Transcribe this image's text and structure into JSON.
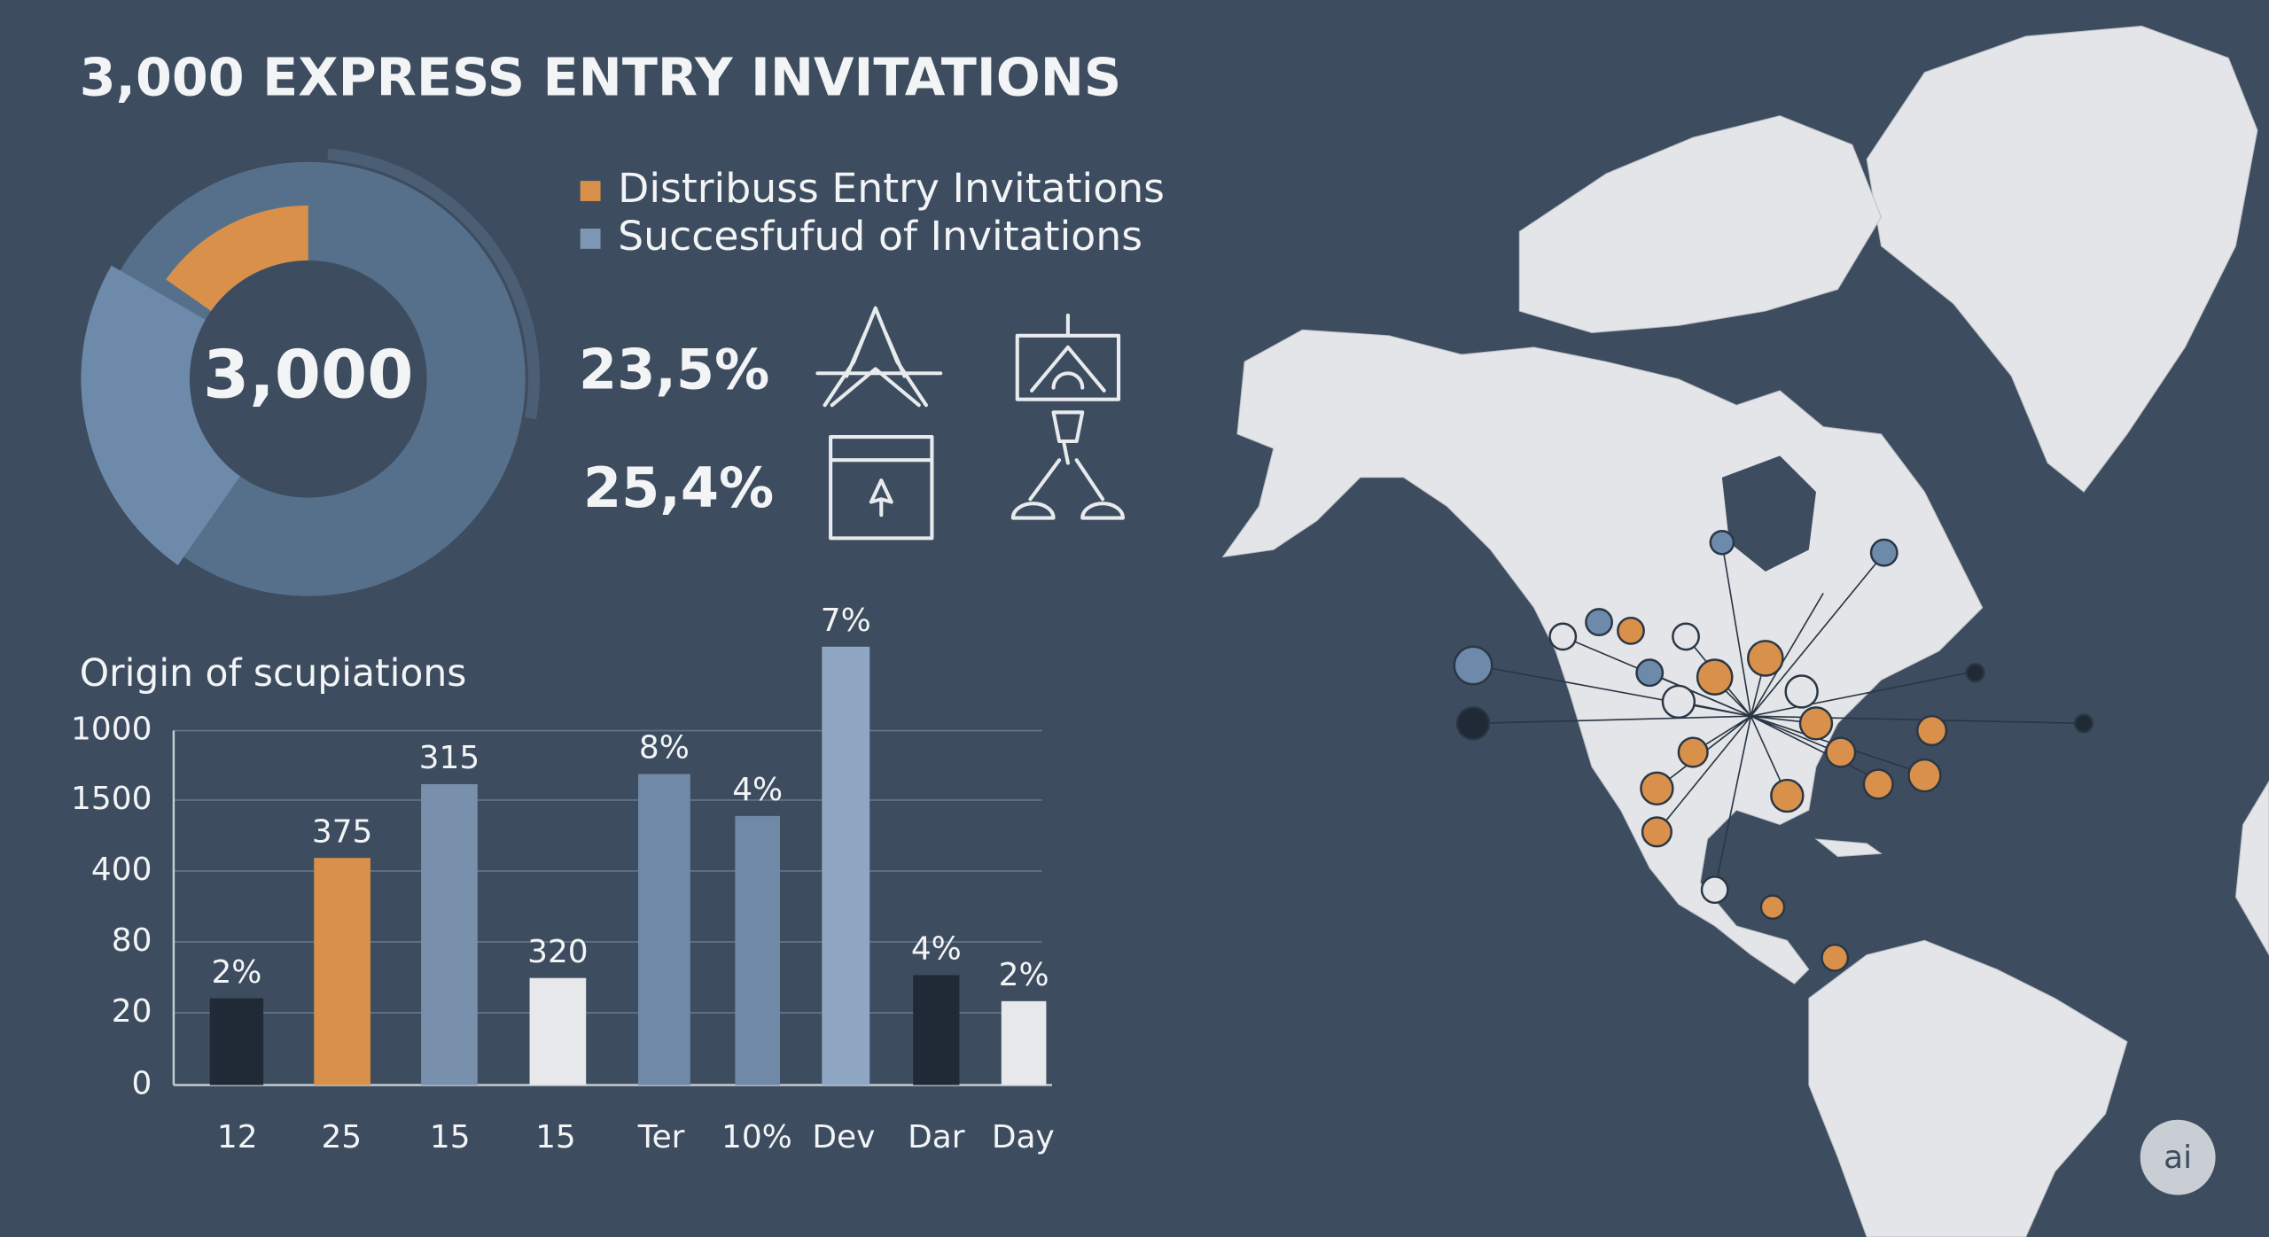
{
  "header": {
    "title": "3,000 EXPRESS ENTRY INVITATIONS"
  },
  "legend": [
    {
      "label": "Distribuss Entry Invitations",
      "color": "#d9904a"
    },
    {
      "label": "Succesfufud of Invitations",
      "color": "#7d97b4"
    }
  ],
  "donut": {
    "center_label": "3,000"
  },
  "stats": [
    "23,5%",
    "25,4%"
  ],
  "bar_panel": {
    "title": "Origin of scupiations",
    "axis_labels": [
      "1000",
      "1500",
      "400",
      "80",
      "20",
      "0"
    ],
    "bars": [
      {
        "category": "12",
        "label": "2%",
        "color": "#1f2a36"
      },
      {
        "category": "25",
        "label": "375",
        "color": "#d9904a"
      },
      {
        "category": "15",
        "label": "315",
        "color": "#7890ab"
      },
      {
        "category": "15",
        "label": "320",
        "color": "#e6e8ea"
      },
      {
        "category": "Ter",
        "label": "8%",
        "color": "#6f89a6"
      },
      {
        "category": "10%",
        "label": "4%",
        "color": "#6f89a6"
      },
      {
        "category": "Dev",
        "label": "7%",
        "color": "#8fa7c2"
      },
      {
        "category": "Dar",
        "label": "4%",
        "color": "#1f2a36"
      },
      {
        "category": "Day",
        "label": "2%",
        "color": "#e6e8ea"
      }
    ]
  },
  "badge": "ai"
}
